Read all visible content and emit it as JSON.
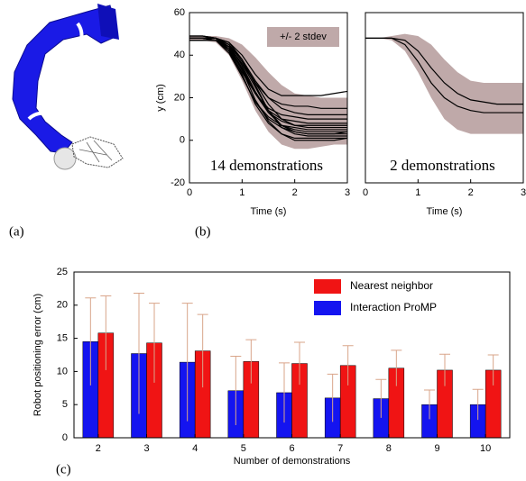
{
  "panel_labels": [
    "(a)",
    "(b)",
    "(c)"
  ],
  "chart_data": [
    {
      "type": "line",
      "annotation": "14 demonstrations",
      "xlabel": "Time (s)",
      "ylabel": "y (cm)",
      "x": [
        0,
        0.25,
        0.5,
        0.75,
        1,
        1.25,
        1.5,
        1.75,
        2,
        2.25,
        2.5,
        2.75,
        3
      ],
      "xlim": [
        0,
        3
      ],
      "xticks": [
        0,
        1,
        2,
        3
      ],
      "ylim": [
        -20,
        60
      ],
      "yticks": [
        -20,
        0,
        20,
        40,
        60
      ],
      "band": {
        "name": "+/- 2 stdev",
        "color": "#bfa9a9",
        "upper": [
          49,
          49,
          49,
          48,
          45,
          39,
          32,
          26,
          22,
          21,
          20,
          20,
          20
        ],
        "lower": [
          47,
          47,
          46,
          40,
          28,
          14,
          4,
          -2,
          -4,
          -4,
          -3,
          -2,
          -2
        ]
      },
      "series": [
        {
          "color": "#000000",
          "values": [
            48,
            48,
            48,
            46,
            40,
            31,
            24,
            21,
            21,
            21,
            21,
            22,
            23
          ]
        },
        {
          "color": "#000000",
          "values": [
            48,
            48,
            47,
            44,
            36,
            27,
            20,
            17,
            16,
            16,
            15,
            15,
            15
          ]
        },
        {
          "color": "#000000",
          "values": [
            48,
            48,
            48,
            45,
            38,
            28,
            20,
            15,
            13,
            12,
            12,
            12,
            12
          ]
        },
        {
          "color": "#000000",
          "values": [
            49,
            49,
            48,
            43,
            33,
            22,
            15,
            12,
            11,
            10,
            10,
            10,
            10
          ]
        },
        {
          "color": "#000000",
          "values": [
            48,
            48,
            47,
            42,
            32,
            22,
            14,
            10,
            9,
            8,
            8,
            8,
            8
          ]
        },
        {
          "color": "#000000",
          "values": [
            48,
            48,
            48,
            44,
            34,
            22,
            13,
            9,
            7,
            7,
            7,
            7,
            7
          ]
        },
        {
          "color": "#000000",
          "values": [
            47,
            47,
            47,
            41,
            30,
            18,
            11,
            7,
            6,
            5,
            5,
            5,
            5
          ]
        },
        {
          "color": "#000000",
          "values": [
            48,
            48,
            48,
            45,
            35,
            23,
            13,
            7,
            5,
            4,
            4,
            4,
            4
          ]
        },
        {
          "color": "#000000",
          "values": [
            49,
            49,
            48,
            42,
            30,
            18,
            10,
            6,
            4,
            3,
            3,
            3,
            3
          ]
        },
        {
          "color": "#000000",
          "values": [
            48,
            48,
            48,
            46,
            38,
            26,
            14,
            6,
            3,
            2,
            2,
            2,
            2
          ]
        },
        {
          "color": "#000000",
          "values": [
            48,
            48,
            47,
            43,
            31,
            17,
            8,
            3,
            1,
            1,
            1,
            1,
            1
          ]
        },
        {
          "color": "#000000",
          "values": [
            48,
            48,
            48,
            44,
            33,
            19,
            9,
            3,
            0,
            0,
            0,
            0,
            1
          ]
        },
        {
          "color": "#000000",
          "values": [
            47,
            47,
            47,
            44,
            36,
            25,
            14,
            7,
            4,
            3,
            3,
            3,
            4
          ]
        },
        {
          "color": "#000000",
          "values": [
            48,
            48,
            48,
            45,
            37,
            27,
            17,
            10,
            7,
            6,
            6,
            6,
            6
          ]
        }
      ]
    },
    {
      "type": "line",
      "annotation": "2 demonstrations",
      "xlabel": "Time (s)",
      "x": [
        0,
        0.25,
        0.5,
        0.75,
        1,
        1.25,
        1.5,
        1.75,
        2,
        2.25,
        2.5,
        2.75,
        3
      ],
      "xlim": [
        0,
        3
      ],
      "xticks": [
        0,
        1,
        2,
        3
      ],
      "ylim": [
        -20,
        60
      ],
      "band": {
        "color": "#bfa9a9",
        "upper": [
          48,
          48,
          49,
          50,
          49,
          45,
          38,
          32,
          28,
          27,
          27,
          27,
          27
        ],
        "lower": [
          48,
          48,
          47,
          42,
          32,
          20,
          10,
          5,
          3,
          3,
          3,
          3,
          3
        ]
      },
      "series": [
        {
          "color": "#000000",
          "values": [
            48,
            48,
            48,
            47,
            42,
            34,
            27,
            22,
            19,
            18,
            17,
            17,
            17
          ]
        },
        {
          "color": "#000000",
          "values": [
            48,
            48,
            48,
            45,
            37,
            27,
            20,
            16,
            14,
            13,
            13,
            13,
            13
          ]
        }
      ]
    },
    {
      "type": "bar",
      "xlabel": "Number of demonstrations",
      "ylabel": "Robot positioning error (cm)",
      "categories": [
        "2",
        "3",
        "4",
        "5",
        "6",
        "7",
        "8",
        "9",
        "10"
      ],
      "ylim": [
        0,
        25
      ],
      "yticks": [
        0,
        5,
        10,
        15,
        20,
        25
      ],
      "error_color": "#d9a58a",
      "series": [
        {
          "name": "Interaction ProMP",
          "color": "#1414f0",
          "values": [
            14.5,
            12.7,
            11.4,
            7.1,
            6.8,
            6.0,
            5.9,
            5.0,
            5.0
          ],
          "errors": [
            6.6,
            9.1,
            8.9,
            5.2,
            4.5,
            3.6,
            2.9,
            2.2,
            2.3
          ]
        },
        {
          "name": "Nearest neighbor",
          "color": "#f01414",
          "values": [
            15.8,
            14.3,
            13.1,
            11.5,
            11.2,
            10.9,
            10.5,
            10.2,
            10.2
          ],
          "errors": [
            5.6,
            6.0,
            5.5,
            3.3,
            3.2,
            3.0,
            2.7,
            2.4,
            2.3
          ]
        }
      ]
    }
  ]
}
